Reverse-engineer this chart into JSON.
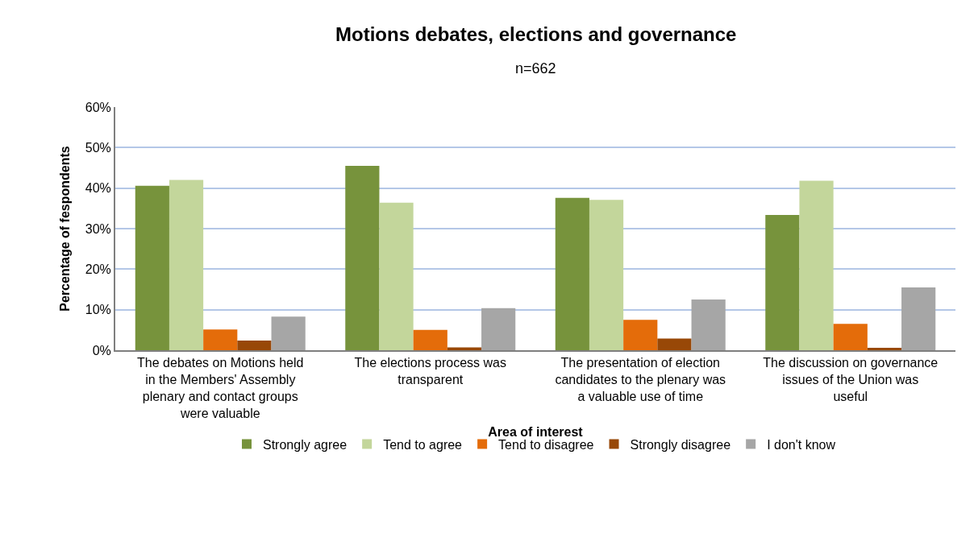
{
  "chart_data": {
    "type": "bar",
    "title": "Motions debates, elections and governance",
    "subtitle": "n=662",
    "xlabel": "Area of interest",
    "ylabel": "Percentage of fespondents",
    "categories": [
      "The debates on Motions held in the Members' Assembly plenary and contact groups were valuable",
      "The elections process was transparent",
      "The presentation of election candidates to the plenary was a valuable use of time",
      "The discussion on governance issues of the Union was useful"
    ],
    "series": [
      {
        "name": "Strongly agree",
        "color": "#77933c",
        "values": [
          40.6,
          45.5,
          37.6,
          33.4
        ]
      },
      {
        "name": "Tend to agree",
        "color": "#c3d69b",
        "values": [
          42.0,
          36.4,
          37.1,
          41.8
        ]
      },
      {
        "name": "Tend to disagree",
        "color": "#e46c0a",
        "values": [
          5.1,
          5.0,
          7.5,
          6.5
        ]
      },
      {
        "name": "Strongly disagree",
        "color": "#984807",
        "values": [
          2.4,
          0.7,
          2.9,
          0.6
        ]
      },
      {
        "name": "I don't know",
        "color": "#a6a6a6",
        "values": [
          8.3,
          10.4,
          12.5,
          15.5
        ]
      }
    ],
    "ylim": [
      0,
      60
    ],
    "yticks": [
      {
        "value": 0,
        "label": "0%"
      },
      {
        "value": 10,
        "label": "10%"
      },
      {
        "value": 20,
        "label": "20%"
      },
      {
        "value": 30,
        "label": "30%"
      },
      {
        "value": 40,
        "label": "40%"
      },
      {
        "value": 50,
        "label": "50%"
      },
      {
        "value": 60,
        "label": "60%"
      }
    ],
    "grid": "y",
    "legend": "bottom"
  }
}
